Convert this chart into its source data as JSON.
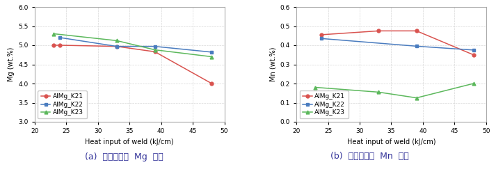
{
  "mg_x": [
    23,
    24,
    33,
    39,
    48
  ],
  "mg_k21": [
    5.0,
    5.0,
    4.97,
    4.83,
    4.0
  ],
  "mg_k22": [
    null,
    5.2,
    4.97,
    4.97,
    4.82
  ],
  "mg_k23": [
    5.3,
    null,
    5.12,
    4.88,
    4.7
  ],
  "mn_x": [
    23,
    24,
    33,
    39,
    48
  ],
  "mn_k21": [
    null,
    0.455,
    0.475,
    0.475,
    0.35
  ],
  "mn_k22": [
    null,
    0.435,
    null,
    0.395,
    0.375
  ],
  "mn_k23": [
    0.18,
    null,
    0.155,
    0.125,
    0.2
  ],
  "mg_ylim": [
    3.0,
    6.0
  ],
  "mg_yticks": [
    3.0,
    3.5,
    4.0,
    4.5,
    5.0,
    5.5,
    6.0
  ],
  "mn_ylim": [
    0.0,
    0.6
  ],
  "mn_yticks": [
    0.0,
    0.1,
    0.2,
    0.3,
    0.4,
    0.5,
    0.6
  ],
  "xlim": [
    20,
    50
  ],
  "xticks": [
    20,
    25,
    30,
    35,
    40,
    45,
    50
  ],
  "xlabel": "Heat input of weld (kJ/cm)",
  "mg_ylabel": "Mg (wt.%)",
  "mn_ylabel": "Mn (wt.%)",
  "color_k21": "#d9534f",
  "color_k22": "#4a7cbf",
  "color_k23": "#5cb85c",
  "label_k21": "AlMg_K21",
  "label_k22": "AlMg_K22",
  "label_k23": "AlMg_K23",
  "caption_a": "(a)  용융금속부  Mg  함량",
  "caption_b": "(b)  용융금속부  Mn  함량",
  "caption_fontsize": 9,
  "axis_fontsize": 7,
  "tick_fontsize": 6.5,
  "legend_fontsize": 6.5
}
